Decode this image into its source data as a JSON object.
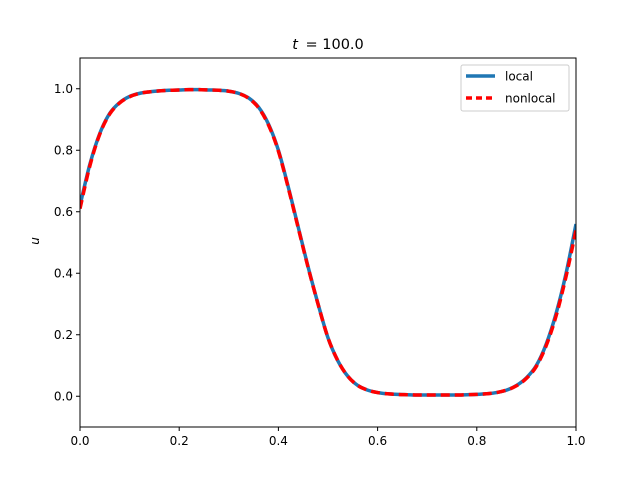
{
  "chart_data": {
    "type": "line",
    "title_prefix": "t",
    "title_value": "= 100.0",
    "xlabel": "",
    "ylabel": "u",
    "xlim": [
      0.0,
      1.0
    ],
    "ylim": [
      -0.1,
      1.1
    ],
    "x_ticks": [
      0.0,
      0.2,
      0.4,
      0.6,
      0.8,
      1.0
    ],
    "x_tick_labels": [
      "0.0",
      "0.2",
      "0.4",
      "0.6",
      "0.8",
      "1.0"
    ],
    "y_ticks": [
      0.0,
      0.2,
      0.4,
      0.6,
      0.8,
      1.0
    ],
    "y_tick_labels": [
      "0.0",
      "0.2",
      "0.4",
      "0.6",
      "0.8",
      "1.0"
    ],
    "grid": false,
    "legend_position": "top-right",
    "x": [
      0.0,
      0.02,
      0.04,
      0.06,
      0.08,
      0.1,
      0.12,
      0.14,
      0.16,
      0.18,
      0.2,
      0.22,
      0.24,
      0.26,
      0.28,
      0.3,
      0.32,
      0.34,
      0.36,
      0.38,
      0.4,
      0.42,
      0.44,
      0.46,
      0.48,
      0.5,
      0.52,
      0.54,
      0.56,
      0.58,
      0.6,
      0.62,
      0.64,
      0.66,
      0.68,
      0.7,
      0.72,
      0.74,
      0.76,
      0.78,
      0.8,
      0.82,
      0.84,
      0.86,
      0.88,
      0.9,
      0.92,
      0.94,
      0.96,
      0.98,
      1.0
    ],
    "series": [
      {
        "name": "local",
        "color": "#1f77b4",
        "style": "solid",
        "values": [
          0.62,
          0.755,
          0.855,
          0.92,
          0.955,
          0.975,
          0.985,
          0.99,
          0.993,
          0.995,
          0.996,
          0.997,
          0.997,
          0.996,
          0.995,
          0.992,
          0.985,
          0.97,
          0.94,
          0.885,
          0.8,
          0.68,
          0.55,
          0.42,
          0.3,
          0.19,
          0.115,
          0.065,
          0.035,
          0.02,
          0.012,
          0.008,
          0.006,
          0.005,
          0.004,
          0.004,
          0.004,
          0.004,
          0.004,
          0.005,
          0.006,
          0.008,
          0.012,
          0.02,
          0.035,
          0.06,
          0.1,
          0.17,
          0.27,
          0.4,
          0.56
        ]
      },
      {
        "name": "nonlocal",
        "color": "#ff0000",
        "style": "dashed",
        "values": [
          0.61,
          0.75,
          0.853,
          0.918,
          0.954,
          0.974,
          0.985,
          0.99,
          0.993,
          0.995,
          0.996,
          0.997,
          0.997,
          0.996,
          0.995,
          0.992,
          0.985,
          0.969,
          0.938,
          0.882,
          0.797,
          0.677,
          0.547,
          0.418,
          0.299,
          0.19,
          0.115,
          0.065,
          0.035,
          0.02,
          0.012,
          0.008,
          0.006,
          0.005,
          0.004,
          0.004,
          0.004,
          0.004,
          0.004,
          0.005,
          0.006,
          0.008,
          0.012,
          0.02,
          0.034,
          0.058,
          0.097,
          0.165,
          0.262,
          0.39,
          0.54
        ]
      }
    ]
  }
}
